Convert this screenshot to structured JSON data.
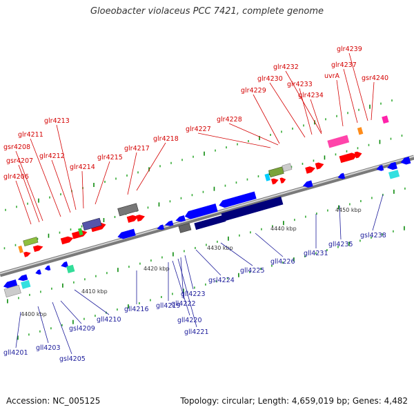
{
  "title": "Gloeobacter violaceus PCC 7421, complete genome",
  "footer": {
    "accession": "Accession: NC_005125",
    "summary": "Topology: circular; Length: 4,659,019 bp; Genes: 4,482"
  },
  "ticks": [
    "4400 kbp",
    "4410 kbp",
    "4420 kbp",
    "4430 kbp",
    "4440 kbp",
    "4450 kbp"
  ],
  "forward_genes": [
    "glr4206",
    "gsr4207",
    "gsr4208",
    "glr4211",
    "glr4212",
    "glr4213",
    "glr4214",
    "glr4215",
    "glr4217",
    "glr4218",
    "glr4227",
    "glr4228",
    "glr4229",
    "glr4230",
    "glr4232",
    "glr4233",
    "glr4234",
    "uvrA",
    "glr4237",
    "glr4239",
    "gsr4240"
  ],
  "reverse_genes": [
    "gll4201",
    "gll4203",
    "gsl4205",
    "gsl4209",
    "gll4210",
    "gll4216",
    "gll4219",
    "gll4220",
    "gll4221",
    "gll4222",
    "gll4223",
    "gsl4224",
    "gll4225",
    "gll4226",
    "gll4231",
    "gll4235",
    "gsl4238"
  ],
  "colors": {
    "forward": "#ff0000",
    "reverse": "#0000ff",
    "dark_blue": "#00007a",
    "backbone": "#9a9a9a",
    "label_forward": "#d40000",
    "label_reverse": "#1a1a9a"
  }
}
